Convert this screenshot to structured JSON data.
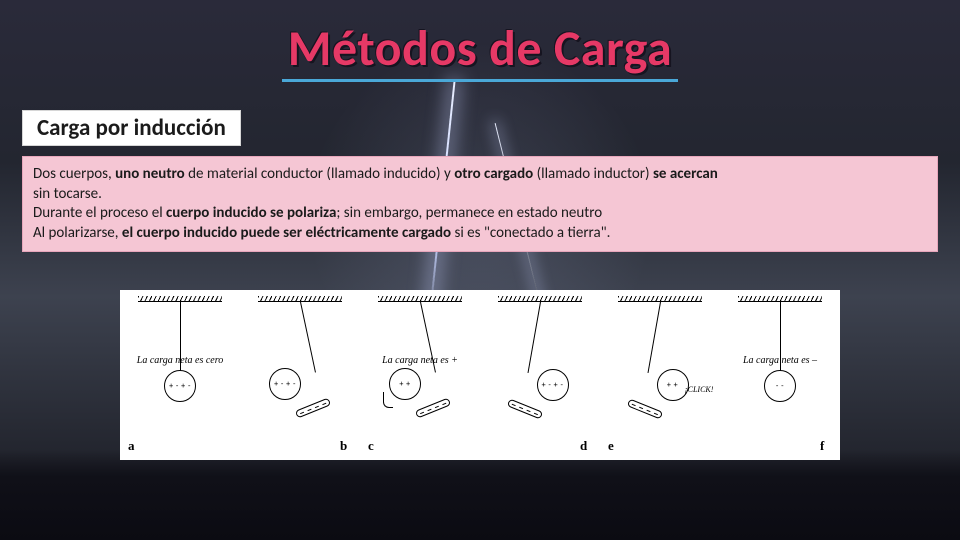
{
  "title": "Métodos de Carga",
  "subtitle": "Carga por inducción",
  "description": {
    "line1_pre": "Dos cuerpos, ",
    "line1_b1": "uno neutro",
    "line1_mid1": " de material conductor (llamado inducido) y ",
    "line1_b2": "otro cargado",
    "line1_mid2": " (llamado inductor) ",
    "line1_b3": "se acercan",
    "line2_pre": "sin tocarse.",
    "line3_pre": "Durante el proceso el ",
    "line3_b1": "cuerpo inducido se polariza",
    "line3_post": "; sin embargo, permanece en estado neutro",
    "line4_pre": "Al polarizarse, ",
    "line4_b1": "el cuerpo inducido puede ser eléctricamente cargado",
    "line4_post": " si es \"conectado a tierra\"."
  },
  "figure": {
    "panels": [
      {
        "letter": "a",
        "caption": "La carga neta es cero",
        "ball_angle": 0,
        "ball_charges": "+-+-",
        "rod": false
      },
      {
        "letter": "b",
        "caption": "",
        "ball_angle": -12,
        "ball_charges": "+-+-",
        "rod": true,
        "rod_side": "right"
      },
      {
        "letter": "c",
        "caption": "La carga neta es +",
        "ball_angle": -12,
        "ball_charges": "++",
        "rod": true,
        "rod_side": "right",
        "ground": true
      },
      {
        "letter": "d",
        "caption": "",
        "ball_angle": 10,
        "ball_charges": "+-+-",
        "rod": true,
        "rod_side": "left"
      },
      {
        "letter": "e",
        "caption": "",
        "ball_angle": 10,
        "ball_charges": "++",
        "rod": true,
        "rod_side": "left",
        "click": true
      },
      {
        "letter": "f",
        "caption": "La carga neta es –",
        "ball_angle": 0,
        "ball_charges": "--",
        "rod": false
      }
    ]
  },
  "colors": {
    "title": "#e63966",
    "underline": "#4aa8d8",
    "desc_bg": "#f5c6d4",
    "desc_border": "#e7a6bb"
  }
}
